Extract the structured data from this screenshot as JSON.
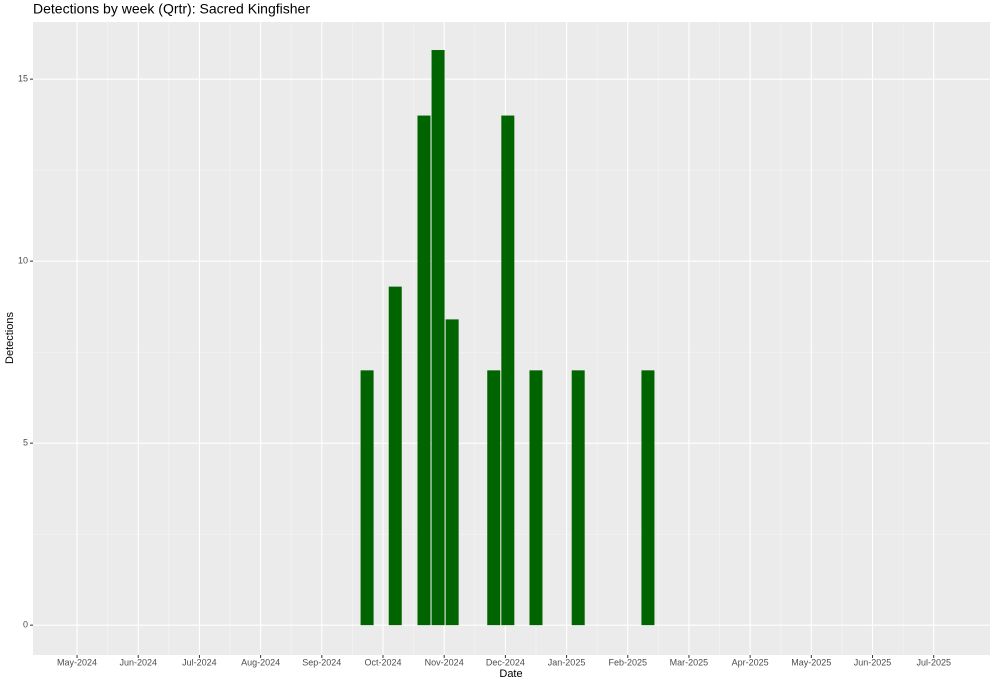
{
  "chart_data": {
    "type": "bar",
    "title": "Detections by week (Qrtr): Sacred Kingfisher",
    "x_label": "Date",
    "y_label": "Detections",
    "x": [
      4.74,
      5.2,
      5.67,
      5.9,
      6.13,
      6.81,
      7.04,
      7.5,
      8.19,
      9.33
    ],
    "values": [
      7,
      9.3,
      14,
      15.8,
      8.4,
      7,
      14,
      7,
      7,
      7
    ],
    "color": "#006400",
    "xlim": [
      -0.72,
      14.92
    ],
    "xticks": [
      {
        "value": 0,
        "label": "May-2024"
      },
      {
        "value": 1,
        "label": "Jun-2024"
      },
      {
        "value": 2,
        "label": "Jul-2024"
      },
      {
        "value": 3,
        "label": "Aug-2024"
      },
      {
        "value": 4,
        "label": "Sep-2024"
      },
      {
        "value": 5,
        "label": "Oct-2024"
      },
      {
        "value": 6,
        "label": "Nov-2024"
      },
      {
        "value": 7,
        "label": "Dec-2024"
      },
      {
        "value": 8,
        "label": "Jan-2025"
      },
      {
        "value": 9,
        "label": "Feb-2025"
      },
      {
        "value": 10,
        "label": "Mar-2025"
      },
      {
        "value": 11,
        "label": "Apr-2025"
      },
      {
        "value": 12,
        "label": "May-2025"
      },
      {
        "value": 13,
        "label": "Jun-2025"
      },
      {
        "value": 14,
        "label": "Jul-2025"
      }
    ],
    "ylim": [
      -0.82,
      16.57
    ],
    "yticks": [
      0,
      5,
      10,
      15
    ],
    "grid": true
  }
}
